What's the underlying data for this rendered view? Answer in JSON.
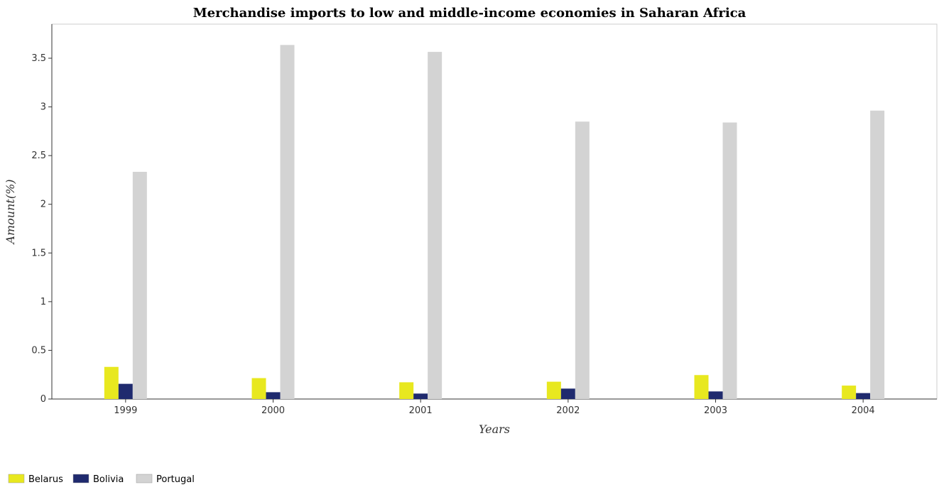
{
  "chart_data": {
    "type": "bar",
    "title": "Merchandise imports to low and middle-income economies in Saharan Africa",
    "xlabel": "Years",
    "ylabel": "Amount(%)",
    "categories": [
      "1999",
      "2000",
      "2001",
      "2002",
      "2003",
      "2004"
    ],
    "ylim": [
      0,
      3.85
    ],
    "yticks": [
      0,
      0.5,
      1,
      1.5,
      2,
      2.5,
      3,
      3.5
    ],
    "ytick_labels": [
      "0",
      "0.5",
      "1",
      "1.5",
      "2",
      "2.5",
      "3",
      "3.5"
    ],
    "grid": false,
    "legend_position": "bottom-left",
    "series": [
      {
        "name": "Belarus",
        "color": "#e8e81f",
        "values": [
          0.33,
          0.215,
          0.172,
          0.178,
          0.246,
          0.138
        ]
      },
      {
        "name": "Bolivia",
        "color": "#1f2a6e",
        "values": [
          0.156,
          0.07,
          0.056,
          0.107,
          0.078,
          0.061
        ]
      },
      {
        "name": "Portugal",
        "color": "#d3d3d3",
        "values": [
          2.333,
          3.636,
          3.565,
          2.849,
          2.84,
          2.962
        ]
      }
    ]
  }
}
